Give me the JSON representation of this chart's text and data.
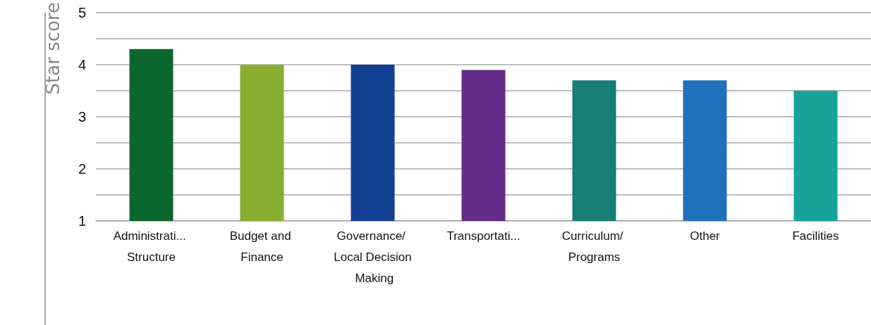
{
  "chart_data": {
    "type": "bar",
    "ylabel": "Star score",
    "categories": [
      "Administrati... Structure",
      "Budget and Finance",
      "Governance/ Local Decision Making",
      "Transportati...",
      "Curriculum/ Programs",
      "Other",
      "Facilities"
    ],
    "values": [
      4.3,
      4.0,
      4.0,
      3.9,
      3.7,
      3.7,
      3.5
    ],
    "colors": [
      "#0c672e",
      "#88ae2f",
      "#133f92",
      "#632c8b",
      "#167e76",
      "#1e70bb",
      "#17a399"
    ],
    "ylim": [
      1,
      5
    ],
    "yticks": [
      1,
      {
        "value": 1.5,
        "label": null
      },
      2,
      {
        "value": 2.5,
        "label": null
      },
      3,
      {
        "value": 3.5,
        "label": null
      },
      4,
      {
        "value": 4.5,
        "label": null
      },
      5
    ],
    "grid": "y"
  }
}
